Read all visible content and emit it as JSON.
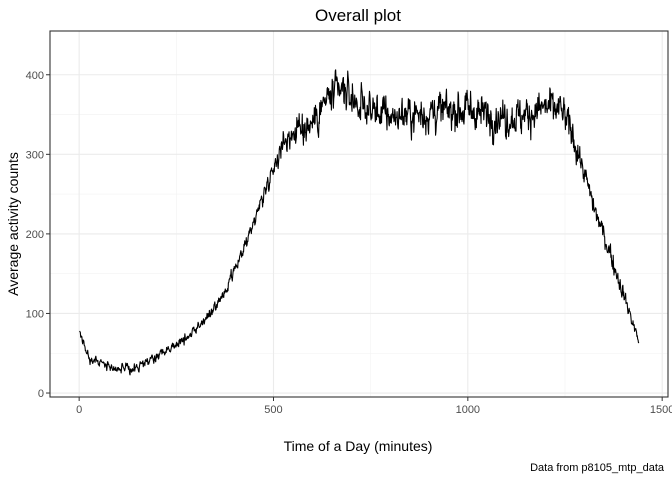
{
  "chart_data": {
    "type": "line",
    "title": "Overall plot",
    "xlabel": "Time of a Day (minutes)",
    "ylabel": "Average activity counts",
    "caption": "Data from p8105_mtp_data",
    "xlim": [
      -75,
      1515
    ],
    "ylim": [
      -5,
      455
    ],
    "x_ticks": [
      0,
      500,
      1000,
      1500
    ],
    "y_ticks": [
      0,
      100,
      200,
      300,
      400
    ],
    "x_tick_labels": [
      "0",
      "500",
      "1000",
      "1500"
    ],
    "y_tick_labels": [
      "0",
      "100",
      "200",
      "300",
      "400"
    ],
    "grid": true,
    "theme": "bw",
    "line_color": "#000000",
    "series": [
      {
        "x_start": 1,
        "x_step": 1,
        "trend_points": [
          [
            1,
            78
          ],
          [
            25,
            45
          ],
          [
            60,
            38
          ],
          [
            100,
            30
          ],
          [
            140,
            30
          ],
          [
            180,
            40
          ],
          [
            220,
            52
          ],
          [
            260,
            65
          ],
          [
            300,
            80
          ],
          [
            340,
            100
          ],
          [
            380,
            130
          ],
          [
            420,
            175
          ],
          [
            460,
            230
          ],
          [
            500,
            285
          ],
          [
            530,
            320
          ],
          [
            560,
            330
          ],
          [
            600,
            340
          ],
          [
            640,
            370
          ],
          [
            680,
            380
          ],
          [
            720,
            362
          ],
          [
            760,
            355
          ],
          [
            800,
            348
          ],
          [
            850,
            350
          ],
          [
            900,
            352
          ],
          [
            950,
            355
          ],
          [
            1000,
            356
          ],
          [
            1050,
            350
          ],
          [
            1100,
            345
          ],
          [
            1150,
            350
          ],
          [
            1200,
            360
          ],
          [
            1240,
            355
          ],
          [
            1270,
            325
          ],
          [
            1300,
            275
          ],
          [
            1330,
            225
          ],
          [
            1360,
            185
          ],
          [
            1390,
            140
          ],
          [
            1420,
            95
          ],
          [
            1440,
            65
          ]
        ],
        "noise_envelope": [
          [
            1,
            8
          ],
          [
            300,
            8
          ],
          [
            500,
            14
          ],
          [
            560,
            28
          ],
          [
            700,
            32
          ],
          [
            1250,
            32
          ],
          [
            1300,
            20
          ],
          [
            1440,
            12
          ]
        ]
      }
    ]
  }
}
